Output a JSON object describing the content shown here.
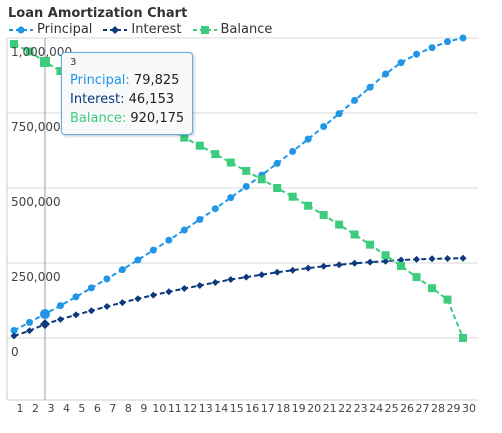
{
  "chart_data": {
    "type": "line",
    "title": "Loan Amortization Chart",
    "x": [
      1,
      2,
      3,
      4,
      5,
      6,
      7,
      8,
      9,
      10,
      11,
      12,
      13,
      14,
      15,
      16,
      17,
      18,
      19,
      20,
      21,
      22,
      23,
      24,
      25,
      26,
      27,
      28,
      29,
      30
    ],
    "x_tick_labels": [
      "1",
      "2",
      "3",
      "4",
      "5",
      "6",
      "7",
      "8",
      "9",
      "10",
      "11",
      "12",
      "13",
      "14",
      "15",
      "16",
      "17",
      "18",
      "19",
      "20",
      "21",
      "22",
      "23",
      "24",
      "25",
      "26",
      "27",
      "28",
      "29",
      "30"
    ],
    "y_tick_labels": [
      "0",
      "250,000",
      "500,000",
      "750,000",
      "1,000,000"
    ],
    "ylim": [
      0,
      1000000
    ],
    "grid": true,
    "legend_position": "top-left",
    "series": [
      {
        "name": "Principal",
        "color": "#2196e6",
        "marker": "circle",
        "values": [
          25000,
          52000,
          79825,
          108000,
          137000,
          167000,
          197000,
          228000,
          260000,
          293000,
          326000,
          360000,
          395000,
          431000,
          468000,
          505000,
          543000,
          582000,
          622000,
          663000,
          705000,
          748000,
          792000,
          836000,
          880000,
          918000,
          946000,
          968000,
          988000,
          1000000
        ]
      },
      {
        "name": "Interest",
        "color": "#0d3a7c",
        "marker": "diamond",
        "values": [
          7000,
          24000,
          46153,
          62000,
          77000,
          91000,
          105000,
          118000,
          131000,
          143000,
          154000,
          165000,
          175000,
          185000,
          195000,
          203000,
          211000,
          219000,
          226000,
          233000,
          239000,
          244000,
          249000,
          253000,
          256000,
          260000,
          262000,
          264000,
          265000,
          266000
        ]
      },
      {
        "name": "Balance",
        "color": "#3dcc7e",
        "marker": "square",
        "values": [
          980000,
          955000,
          920175,
          890000,
          860000,
          832000,
          806000,
          778000,
          750000,
          722000,
          695000,
          668000,
          641000,
          613000,
          585000,
          557000,
          529000,
          500000,
          471000,
          441000,
          410000,
          378000,
          345000,
          311000,
          276000,
          240000,
          203000,
          166000,
          128000,
          0
        ]
      }
    ]
  },
  "tooltip": {
    "header": "3",
    "rows": [
      {
        "label": "Principal:",
        "value": "79,825",
        "color": "#2196e6"
      },
      {
        "label": "Interest:",
        "value": "46,153",
        "color": "#0d3a7c"
      },
      {
        "label": "Balance:",
        "value": "920,175",
        "color": "#3dcc7e"
      }
    ]
  }
}
